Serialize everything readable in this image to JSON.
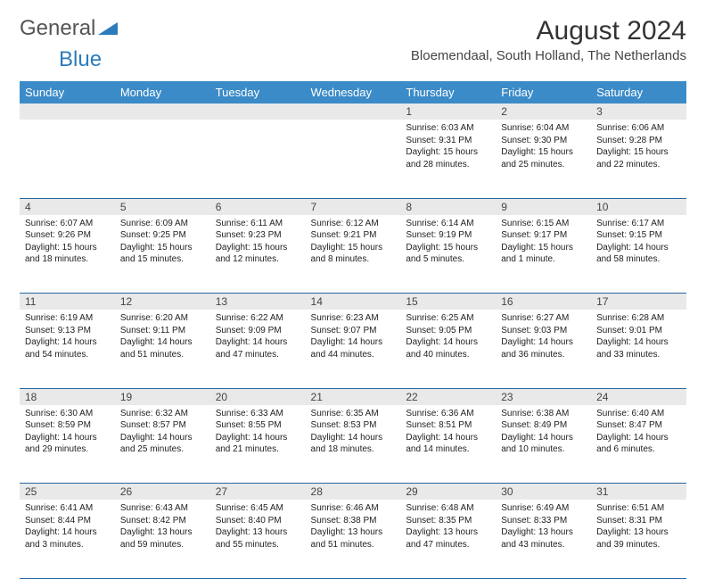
{
  "logo": {
    "general": "General",
    "blue": "Blue"
  },
  "title": "August 2024",
  "location": "Bloemendaal, South Holland, The Netherlands",
  "colors": {
    "header_bg": "#3b8bc8",
    "header_text": "#ffffff",
    "daynum_bg": "#e9e9e9",
    "row_divider": "#2767a0",
    "text": "#222222",
    "logo_blue": "#2b7bbd"
  },
  "weekdays": [
    "Sunday",
    "Monday",
    "Tuesday",
    "Wednesday",
    "Thursday",
    "Friday",
    "Saturday"
  ],
  "weeks": [
    {
      "nums": [
        "",
        "",
        "",
        "",
        "1",
        "2",
        "3"
      ],
      "cells": [
        {
          "sunrise": "",
          "sunset": "",
          "daylight1": "",
          "daylight2": ""
        },
        {
          "sunrise": "",
          "sunset": "",
          "daylight1": "",
          "daylight2": ""
        },
        {
          "sunrise": "",
          "sunset": "",
          "daylight1": "",
          "daylight2": ""
        },
        {
          "sunrise": "",
          "sunset": "",
          "daylight1": "",
          "daylight2": ""
        },
        {
          "sunrise": "Sunrise: 6:03 AM",
          "sunset": "Sunset: 9:31 PM",
          "daylight1": "Daylight: 15 hours",
          "daylight2": "and 28 minutes."
        },
        {
          "sunrise": "Sunrise: 6:04 AM",
          "sunset": "Sunset: 9:30 PM",
          "daylight1": "Daylight: 15 hours",
          "daylight2": "and 25 minutes."
        },
        {
          "sunrise": "Sunrise: 6:06 AM",
          "sunset": "Sunset: 9:28 PM",
          "daylight1": "Daylight: 15 hours",
          "daylight2": "and 22 minutes."
        }
      ]
    },
    {
      "nums": [
        "4",
        "5",
        "6",
        "7",
        "8",
        "9",
        "10"
      ],
      "cells": [
        {
          "sunrise": "Sunrise: 6:07 AM",
          "sunset": "Sunset: 9:26 PM",
          "daylight1": "Daylight: 15 hours",
          "daylight2": "and 18 minutes."
        },
        {
          "sunrise": "Sunrise: 6:09 AM",
          "sunset": "Sunset: 9:25 PM",
          "daylight1": "Daylight: 15 hours",
          "daylight2": "and 15 minutes."
        },
        {
          "sunrise": "Sunrise: 6:11 AM",
          "sunset": "Sunset: 9:23 PM",
          "daylight1": "Daylight: 15 hours",
          "daylight2": "and 12 minutes."
        },
        {
          "sunrise": "Sunrise: 6:12 AM",
          "sunset": "Sunset: 9:21 PM",
          "daylight1": "Daylight: 15 hours",
          "daylight2": "and 8 minutes."
        },
        {
          "sunrise": "Sunrise: 6:14 AM",
          "sunset": "Sunset: 9:19 PM",
          "daylight1": "Daylight: 15 hours",
          "daylight2": "and 5 minutes."
        },
        {
          "sunrise": "Sunrise: 6:15 AM",
          "sunset": "Sunset: 9:17 PM",
          "daylight1": "Daylight: 15 hours",
          "daylight2": "and 1 minute."
        },
        {
          "sunrise": "Sunrise: 6:17 AM",
          "sunset": "Sunset: 9:15 PM",
          "daylight1": "Daylight: 14 hours",
          "daylight2": "and 58 minutes."
        }
      ]
    },
    {
      "nums": [
        "11",
        "12",
        "13",
        "14",
        "15",
        "16",
        "17"
      ],
      "cells": [
        {
          "sunrise": "Sunrise: 6:19 AM",
          "sunset": "Sunset: 9:13 PM",
          "daylight1": "Daylight: 14 hours",
          "daylight2": "and 54 minutes."
        },
        {
          "sunrise": "Sunrise: 6:20 AM",
          "sunset": "Sunset: 9:11 PM",
          "daylight1": "Daylight: 14 hours",
          "daylight2": "and 51 minutes."
        },
        {
          "sunrise": "Sunrise: 6:22 AM",
          "sunset": "Sunset: 9:09 PM",
          "daylight1": "Daylight: 14 hours",
          "daylight2": "and 47 minutes."
        },
        {
          "sunrise": "Sunrise: 6:23 AM",
          "sunset": "Sunset: 9:07 PM",
          "daylight1": "Daylight: 14 hours",
          "daylight2": "and 44 minutes."
        },
        {
          "sunrise": "Sunrise: 6:25 AM",
          "sunset": "Sunset: 9:05 PM",
          "daylight1": "Daylight: 14 hours",
          "daylight2": "and 40 minutes."
        },
        {
          "sunrise": "Sunrise: 6:27 AM",
          "sunset": "Sunset: 9:03 PM",
          "daylight1": "Daylight: 14 hours",
          "daylight2": "and 36 minutes."
        },
        {
          "sunrise": "Sunrise: 6:28 AM",
          "sunset": "Sunset: 9:01 PM",
          "daylight1": "Daylight: 14 hours",
          "daylight2": "and 33 minutes."
        }
      ]
    },
    {
      "nums": [
        "18",
        "19",
        "20",
        "21",
        "22",
        "23",
        "24"
      ],
      "cells": [
        {
          "sunrise": "Sunrise: 6:30 AM",
          "sunset": "Sunset: 8:59 PM",
          "daylight1": "Daylight: 14 hours",
          "daylight2": "and 29 minutes."
        },
        {
          "sunrise": "Sunrise: 6:32 AM",
          "sunset": "Sunset: 8:57 PM",
          "daylight1": "Daylight: 14 hours",
          "daylight2": "and 25 minutes."
        },
        {
          "sunrise": "Sunrise: 6:33 AM",
          "sunset": "Sunset: 8:55 PM",
          "daylight1": "Daylight: 14 hours",
          "daylight2": "and 21 minutes."
        },
        {
          "sunrise": "Sunrise: 6:35 AM",
          "sunset": "Sunset: 8:53 PM",
          "daylight1": "Daylight: 14 hours",
          "daylight2": "and 18 minutes."
        },
        {
          "sunrise": "Sunrise: 6:36 AM",
          "sunset": "Sunset: 8:51 PM",
          "daylight1": "Daylight: 14 hours",
          "daylight2": "and 14 minutes."
        },
        {
          "sunrise": "Sunrise: 6:38 AM",
          "sunset": "Sunset: 8:49 PM",
          "daylight1": "Daylight: 14 hours",
          "daylight2": "and 10 minutes."
        },
        {
          "sunrise": "Sunrise: 6:40 AM",
          "sunset": "Sunset: 8:47 PM",
          "daylight1": "Daylight: 14 hours",
          "daylight2": "and 6 minutes."
        }
      ]
    },
    {
      "nums": [
        "25",
        "26",
        "27",
        "28",
        "29",
        "30",
        "31"
      ],
      "cells": [
        {
          "sunrise": "Sunrise: 6:41 AM",
          "sunset": "Sunset: 8:44 PM",
          "daylight1": "Daylight: 14 hours",
          "daylight2": "and 3 minutes."
        },
        {
          "sunrise": "Sunrise: 6:43 AM",
          "sunset": "Sunset: 8:42 PM",
          "daylight1": "Daylight: 13 hours",
          "daylight2": "and 59 minutes."
        },
        {
          "sunrise": "Sunrise: 6:45 AM",
          "sunset": "Sunset: 8:40 PM",
          "daylight1": "Daylight: 13 hours",
          "daylight2": "and 55 minutes."
        },
        {
          "sunrise": "Sunrise: 6:46 AM",
          "sunset": "Sunset: 8:38 PM",
          "daylight1": "Daylight: 13 hours",
          "daylight2": "and 51 minutes."
        },
        {
          "sunrise": "Sunrise: 6:48 AM",
          "sunset": "Sunset: 8:35 PM",
          "daylight1": "Daylight: 13 hours",
          "daylight2": "and 47 minutes."
        },
        {
          "sunrise": "Sunrise: 6:49 AM",
          "sunset": "Sunset: 8:33 PM",
          "daylight1": "Daylight: 13 hours",
          "daylight2": "and 43 minutes."
        },
        {
          "sunrise": "Sunrise: 6:51 AM",
          "sunset": "Sunset: 8:31 PM",
          "daylight1": "Daylight: 13 hours",
          "daylight2": "and 39 minutes."
        }
      ]
    }
  ]
}
